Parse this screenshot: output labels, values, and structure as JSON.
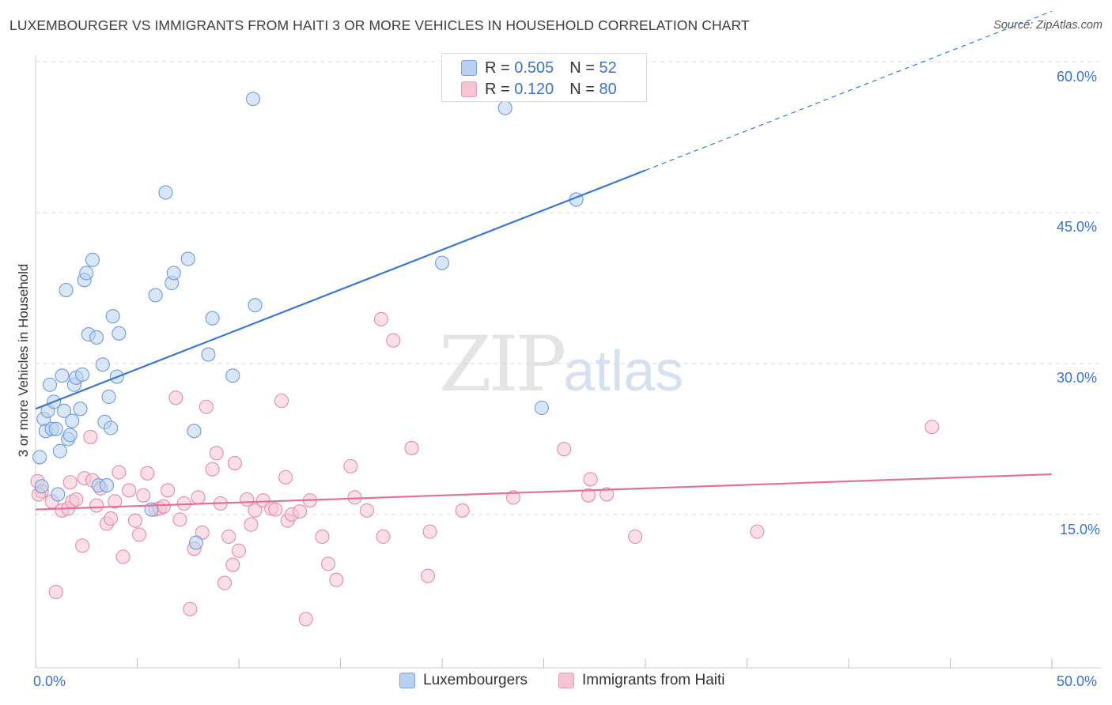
{
  "title": "LUXEMBOURGER VS IMMIGRANTS FROM HAITI 3 OR MORE VEHICLES IN HOUSEHOLD CORRELATION CHART",
  "source": "Source: ZipAtlas.com",
  "watermark": {
    "zip": "ZIP",
    "atlas": "atlas"
  },
  "colors": {
    "blue": "#3a78d0",
    "blue_fill": "#b9d1f1",
    "pink": "#e46f9a",
    "pink_fill": "#f6c4d5",
    "grid": "#d9d9d9",
    "tick_text": "#3a72c9"
  },
  "legend": {
    "r_label": "R =",
    "n_label": "N =",
    "series": [
      {
        "r": "0.505",
        "n": "52"
      },
      {
        "r": "0.120",
        "n": "80"
      }
    ]
  },
  "bottom_legend": [
    "Luxembourgers",
    "Immigrants from Haiti"
  ],
  "chart_data": {
    "type": "scatter",
    "title": "LUXEMBOURGER VS IMMIGRANTS FROM HAITI 3 OR MORE VEHICLES IN HOUSEHOLD CORRELATION CHART",
    "xlabel": "",
    "ylabel": "3 or more Vehicles in Household",
    "xlim": [
      0,
      50
    ],
    "ylim": [
      0,
      63
    ],
    "x_tick_labels": [
      "0.0%",
      "50.0%"
    ],
    "y_ticks": [
      15,
      30,
      45,
      60
    ],
    "y_tick_labels": [
      "15.0%",
      "30.0%",
      "45.0%",
      "60.0%"
    ],
    "grid": true,
    "series": [
      {
        "name": "Luxembourgers",
        "r": 0.505,
        "n": 52,
        "trend": {
          "x0": 0,
          "y0": 25.5,
          "x1": 30,
          "y1": 49.2,
          "dashed_to_x": 50
        },
        "points": [
          [
            0.3,
            17.8
          ],
          [
            0.2,
            20.7
          ],
          [
            0.4,
            24.5
          ],
          [
            0.5,
            23.3
          ],
          [
            0.6,
            25.3
          ],
          [
            0.7,
            27.9
          ],
          [
            0.8,
            23.5
          ],
          [
            0.9,
            26.2
          ],
          [
            1.0,
            23.5
          ],
          [
            1.1,
            17.0
          ],
          [
            1.2,
            21.3
          ],
          [
            1.3,
            28.8
          ],
          [
            1.4,
            25.3
          ],
          [
            1.5,
            37.3
          ],
          [
            1.6,
            22.5
          ],
          [
            1.7,
            22.9
          ],
          [
            1.8,
            24.3
          ],
          [
            1.9,
            27.9
          ],
          [
            2.0,
            28.6
          ],
          [
            2.2,
            25.5
          ],
          [
            2.3,
            28.9
          ],
          [
            2.4,
            38.3
          ],
          [
            2.5,
            39.0
          ],
          [
            2.6,
            32.9
          ],
          [
            2.8,
            40.3
          ],
          [
            3.0,
            32.6
          ],
          [
            3.1,
            17.9
          ],
          [
            3.3,
            29.9
          ],
          [
            3.4,
            24.2
          ],
          [
            3.5,
            17.9
          ],
          [
            3.6,
            26.7
          ],
          [
            3.7,
            23.6
          ],
          [
            3.8,
            34.7
          ],
          [
            4.0,
            28.7
          ],
          [
            4.1,
            33.0
          ],
          [
            5.7,
            15.5
          ],
          [
            5.9,
            36.8
          ],
          [
            6.4,
            47.0
          ],
          [
            6.7,
            38.0
          ],
          [
            6.8,
            39.0
          ],
          [
            7.5,
            40.4
          ],
          [
            7.8,
            23.3
          ],
          [
            7.9,
            12.2
          ],
          [
            8.5,
            30.9
          ],
          [
            8.7,
            34.5
          ],
          [
            9.7,
            28.8
          ],
          [
            10.7,
            56.3
          ],
          [
            10.8,
            35.8
          ],
          [
            20.0,
            40.0
          ],
          [
            23.1,
            55.4
          ],
          [
            24.9,
            25.6
          ],
          [
            26.6,
            46.3
          ]
        ]
      },
      {
        "name": "Immigrants from Haiti",
        "r": 0.12,
        "n": 80,
        "trend": {
          "x0": 0,
          "y0": 15.5,
          "x1": 50,
          "y1": 19.0
        },
        "points": [
          [
            0.1,
            18.3
          ],
          [
            0.3,
            17.3
          ],
          [
            0.8,
            16.3
          ],
          [
            1.0,
            7.3
          ],
          [
            1.3,
            15.4
          ],
          [
            1.6,
            15.6
          ],
          [
            1.7,
            18.2
          ],
          [
            1.8,
            16.3
          ],
          [
            2.0,
            16.5
          ],
          [
            2.3,
            11.9
          ],
          [
            2.4,
            18.6
          ],
          [
            2.7,
            22.7
          ],
          [
            2.8,
            18.4
          ],
          [
            3.0,
            15.9
          ],
          [
            3.2,
            17.6
          ],
          [
            3.5,
            14.1
          ],
          [
            3.7,
            14.6
          ],
          [
            3.9,
            16.3
          ],
          [
            4.1,
            19.2
          ],
          [
            4.3,
            10.8
          ],
          [
            4.6,
            17.4
          ],
          [
            4.9,
            14.4
          ],
          [
            5.1,
            13.0
          ],
          [
            5.3,
            16.9
          ],
          [
            5.5,
            19.1
          ],
          [
            5.9,
            15.5
          ],
          [
            6.1,
            15.6
          ],
          [
            6.3,
            15.8
          ],
          [
            6.5,
            17.4
          ],
          [
            6.9,
            26.6
          ],
          [
            7.1,
            14.5
          ],
          [
            7.3,
            16.1
          ],
          [
            7.6,
            5.6
          ],
          [
            7.8,
            11.6
          ],
          [
            8.0,
            16.7
          ],
          [
            8.2,
            13.2
          ],
          [
            8.4,
            25.7
          ],
          [
            8.7,
            19.5
          ],
          [
            8.9,
            21.1
          ],
          [
            9.1,
            16.1
          ],
          [
            9.3,
            8.2
          ],
          [
            9.5,
            12.8
          ],
          [
            9.7,
            10.0
          ],
          [
            9.8,
            20.1
          ],
          [
            10.0,
            11.4
          ],
          [
            10.4,
            16.5
          ],
          [
            10.6,
            14.0
          ],
          [
            10.8,
            15.4
          ],
          [
            11.2,
            16.4
          ],
          [
            11.6,
            15.6
          ],
          [
            11.8,
            15.5
          ],
          [
            12.1,
            26.3
          ],
          [
            12.3,
            18.7
          ],
          [
            12.4,
            14.4
          ],
          [
            12.6,
            15.0
          ],
          [
            13.0,
            15.3
          ],
          [
            13.3,
            4.6
          ],
          [
            13.5,
            16.4
          ],
          [
            14.1,
            12.8
          ],
          [
            14.4,
            10.1
          ],
          [
            14.8,
            8.5
          ],
          [
            15.5,
            19.8
          ],
          [
            15.7,
            16.7
          ],
          [
            16.3,
            15.4
          ],
          [
            17.0,
            34.4
          ],
          [
            17.6,
            32.3
          ],
          [
            17.1,
            12.8
          ],
          [
            18.5,
            21.6
          ],
          [
            19.3,
            8.9
          ],
          [
            19.4,
            13.3
          ],
          [
            21.0,
            15.4
          ],
          [
            23.5,
            16.7
          ],
          [
            26.0,
            21.5
          ],
          [
            27.2,
            16.9
          ],
          [
            27.3,
            18.5
          ],
          [
            28.1,
            17.0
          ],
          [
            29.5,
            12.8
          ],
          [
            35.5,
            13.3
          ],
          [
            44.1,
            23.7
          ],
          [
            0.15,
            17.0
          ]
        ]
      }
    ]
  }
}
